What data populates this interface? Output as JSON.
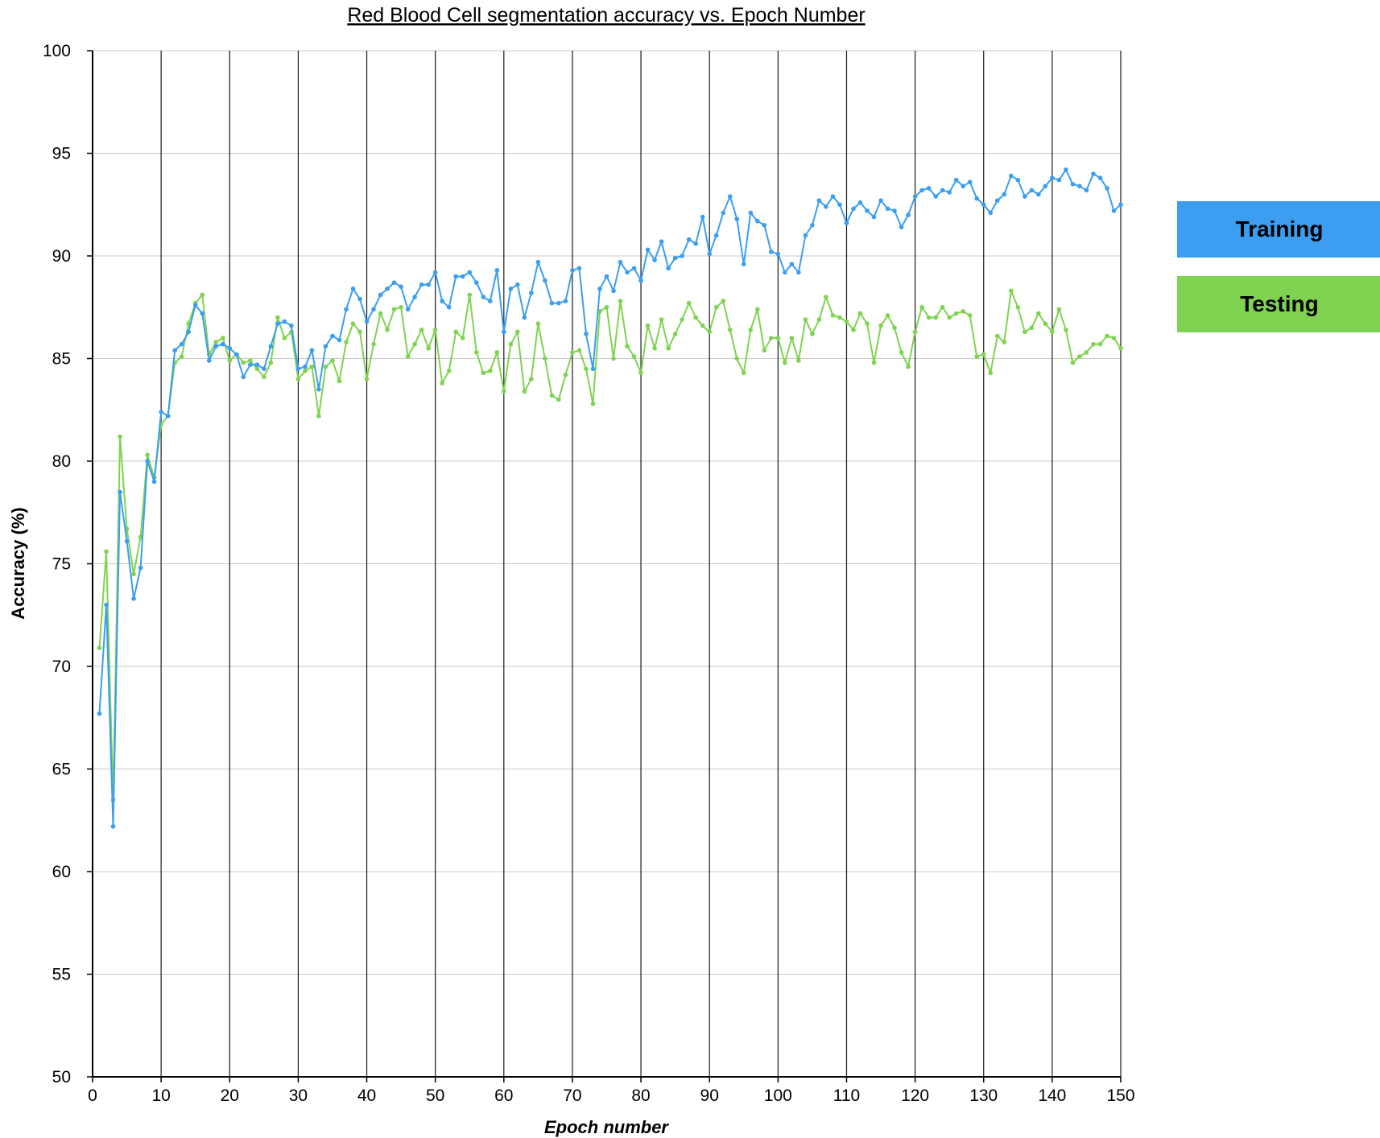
{
  "chart_data": {
    "type": "line",
    "title": "Red Blood Cell segmentation accuracy vs. Epoch Number",
    "xlabel": "Epoch number",
    "ylabel": "Accuracy (%)",
    "xlim": [
      0,
      150
    ],
    "ylim": [
      50,
      100
    ],
    "x_ticks": [
      0,
      10,
      20,
      30,
      40,
      50,
      60,
      70,
      80,
      90,
      100,
      110,
      120,
      130,
      140,
      150
    ],
    "y_ticks": [
      50,
      55,
      60,
      65,
      70,
      75,
      80,
      85,
      90,
      95,
      100
    ],
    "grid": true,
    "legend_position": "right",
    "x": [
      1,
      2,
      3,
      4,
      5,
      6,
      7,
      8,
      9,
      10,
      11,
      12,
      13,
      14,
      15,
      16,
      17,
      18,
      19,
      20,
      21,
      22,
      23,
      24,
      25,
      26,
      27,
      28,
      29,
      30,
      31,
      32,
      33,
      34,
      35,
      36,
      37,
      38,
      39,
      40,
      41,
      42,
      43,
      44,
      45,
      46,
      47,
      48,
      49,
      50,
      51,
      52,
      53,
      54,
      55,
      56,
      57,
      58,
      59,
      60,
      61,
      62,
      63,
      64,
      65,
      66,
      67,
      68,
      69,
      70,
      71,
      72,
      73,
      74,
      75,
      76,
      77,
      78,
      79,
      80,
      81,
      82,
      83,
      84,
      85,
      86,
      87,
      88,
      89,
      90,
      91,
      92,
      93,
      94,
      95,
      96,
      97,
      98,
      99,
      100,
      101,
      102,
      103,
      104,
      105,
      106,
      107,
      108,
      109,
      110,
      111,
      112,
      113,
      114,
      115,
      116,
      117,
      118,
      119,
      120,
      121,
      122,
      123,
      124,
      125,
      126,
      127,
      128,
      129,
      130,
      131,
      132,
      133,
      134,
      135,
      136,
      137,
      138,
      139,
      140,
      141,
      142,
      143,
      144,
      145,
      146,
      147,
      148,
      149,
      150
    ],
    "series": [
      {
        "name": "Training",
        "color": "#3b9ef0",
        "values": [
          67.7,
          73.0,
          62.2,
          78.5,
          76.1,
          73.3,
          74.8,
          80.0,
          79.0,
          82.4,
          82.2,
          85.4,
          85.7,
          86.3,
          87.6,
          87.2,
          84.9,
          85.6,
          85.7,
          85.5,
          85.2,
          84.1,
          84.7,
          84.7,
          84.5,
          85.6,
          86.7,
          86.8,
          86.6,
          84.5,
          84.6,
          85.4,
          83.5,
          85.6,
          86.1,
          85.9,
          87.4,
          88.4,
          87.9,
          86.8,
          87.4,
          88.1,
          88.4,
          88.7,
          88.5,
          87.4,
          88.0,
          88.6,
          88.6,
          89.2,
          87.8,
          87.5,
          89.0,
          89.0,
          89.2,
          88.7,
          88.0,
          87.8,
          89.3,
          86.3,
          88.4,
          88.6,
          87.0,
          88.2,
          89.7,
          88.8,
          87.7,
          87.7,
          87.8,
          89.3,
          89.4,
          86.2,
          84.5,
          88.4,
          89.0,
          88.3,
          89.7,
          89.2,
          89.4,
          88.8,
          90.3,
          89.8,
          90.7,
          89.4,
          89.9,
          90.0,
          90.8,
          90.6,
          91.9,
          90.1,
          91.0,
          92.1,
          92.9,
          91.8,
          89.6,
          92.1,
          91.7,
          91.5,
          90.2,
          90.1,
          89.2,
          89.6,
          89.2,
          91.0,
          91.5,
          92.7,
          92.4,
          92.9,
          92.5,
          91.6,
          92.3,
          92.6,
          92.2,
          91.9,
          92.7,
          92.3,
          92.2,
          91.4,
          92.0,
          92.9,
          93.2,
          93.3,
          92.9,
          93.2,
          93.1,
          93.7,
          93.4,
          93.6,
          92.8,
          92.5,
          92.1,
          92.7,
          93.0,
          93.9,
          93.7,
          92.9,
          93.2,
          93.0,
          93.4,
          93.8,
          93.7,
          94.2,
          93.5,
          93.4,
          93.2,
          94.0,
          93.8,
          93.3,
          92.2,
          92.5
        ]
      },
      {
        "name": "Testing",
        "color": "#7fd350",
        "values": [
          70.9,
          75.6,
          63.5,
          81.2,
          76.7,
          74.5,
          76.3,
          80.3,
          79.2,
          81.8,
          82.2,
          84.8,
          85.1,
          86.7,
          87.7,
          88.1,
          85.2,
          85.8,
          86.0,
          84.9,
          85.2,
          84.8,
          84.9,
          84.5,
          84.1,
          84.8,
          87.0,
          86.0,
          86.3,
          84.0,
          84.4,
          84.6,
          82.2,
          84.6,
          84.9,
          83.9,
          85.8,
          86.7,
          86.3,
          84.0,
          85.7,
          87.2,
          86.4,
          87.4,
          87.5,
          85.1,
          85.7,
          86.4,
          85.5,
          86.4,
          83.8,
          84.4,
          86.3,
          86.0,
          88.1,
          85.3,
          84.3,
          84.4,
          85.3,
          83.4,
          85.7,
          86.3,
          83.4,
          84.0,
          86.7,
          85.0,
          83.2,
          83.0,
          84.2,
          85.3,
          85.4,
          84.5,
          82.8,
          87.3,
          87.5,
          85.0,
          87.8,
          85.6,
          85.1,
          84.3,
          86.6,
          85.5,
          86.9,
          85.5,
          86.2,
          86.9,
          87.7,
          87.0,
          86.6,
          86.3,
          87.5,
          87.8,
          86.4,
          85.0,
          84.3,
          86.4,
          87.4,
          85.4,
          86.0,
          86.0,
          84.8,
          86.0,
          84.9,
          86.9,
          86.2,
          86.9,
          88.0,
          87.1,
          87.0,
          86.8,
          86.4,
          87.2,
          86.7,
          84.8,
          86.6,
          87.1,
          86.5,
          85.3,
          84.6,
          86.3,
          87.5,
          87.0,
          87.0,
          87.5,
          87.0,
          87.2,
          87.3,
          87.1,
          85.1,
          85.2,
          84.3,
          86.1,
          85.8,
          88.3,
          87.5,
          86.3,
          86.5,
          87.2,
          86.7,
          86.3,
          87.4,
          86.4,
          84.8,
          85.1,
          85.3,
          85.7,
          85.7,
          86.1,
          86.0,
          85.5
        ]
      }
    ]
  }
}
